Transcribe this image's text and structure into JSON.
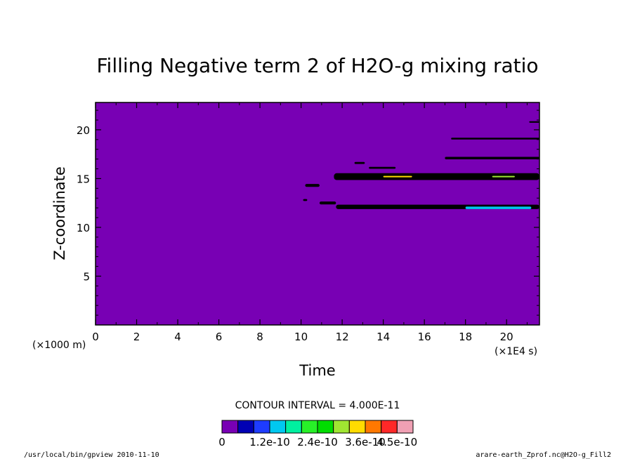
{
  "chart_data": {
    "type": "heatmap",
    "title": "Filling Negative term 2 of H2O-g mixing ratio",
    "xlabel": "Time",
    "ylabel": "Z-coordinate",
    "x_unit_label": "(×1E4 s)",
    "y_unit_label": "(×1000 m)",
    "xlim": [
      0,
      21.6
    ],
    "ylim": [
      0,
      22.8
    ],
    "x_ticks": [
      0,
      2,
      4,
      6,
      8,
      10,
      12,
      14,
      16,
      18,
      20
    ],
    "y_ticks": [
      5,
      10,
      15,
      20
    ],
    "x_tick_labels": [
      "0",
      "2",
      "4",
      "6",
      "8",
      "10",
      "12",
      "14",
      "16",
      "18",
      "20"
    ],
    "y_tick_labels": [
      "5",
      "10",
      "15",
      "20"
    ],
    "background_color": "#7800b4",
    "contour_interval_text": "CONTOUR INTERVAL = 4.000E-11",
    "colorbar": {
      "colors": [
        "#7800b4",
        "#0000b4",
        "#1e3cff",
        "#00c8f0",
        "#00f0a0",
        "#28f028",
        "#00dc00",
        "#a0e632",
        "#ffdc00",
        "#ff7800",
        "#ff2828",
        "#f0a0b4"
      ],
      "labels": [
        "0",
        "1.2e-10",
        "2.4e-10",
        "3.6e-10",
        "4.5e-10"
      ],
      "label_positions": [
        0,
        3,
        6,
        9,
        11
      ]
    },
    "features": [
      {
        "x0": 11.6,
        "x1": 21.6,
        "y": 15.2,
        "thickness": 0.7,
        "fill": "#000000"
      },
      {
        "x0": 11.7,
        "x1": 21.6,
        "y": 12.1,
        "thickness": 0.45,
        "fill": "#000000"
      },
      {
        "x0": 17.0,
        "x1": 21.6,
        "y": 17.1,
        "thickness": 0.25,
        "fill": "#000000"
      },
      {
        "x0": 17.3,
        "x1": 21.6,
        "y": 19.1,
        "thickness": 0.18,
        "fill": "#000000"
      },
      {
        "x0": 21.1,
        "x1": 21.6,
        "y": 20.8,
        "thickness": 0.15,
        "fill": "#000000"
      },
      {
        "x0": 10.9,
        "x1": 11.7,
        "y": 12.5,
        "thickness": 0.3,
        "fill": "#000000"
      },
      {
        "x0": 10.2,
        "x1": 10.9,
        "y": 14.3,
        "thickness": 0.3,
        "fill": "#000000"
      },
      {
        "x0": 12.6,
        "x1": 13.1,
        "y": 16.6,
        "thickness": 0.2,
        "fill": "#000000"
      },
      {
        "x0": 13.3,
        "x1": 14.6,
        "y": 16.1,
        "thickness": 0.2,
        "fill": "#000000"
      },
      {
        "x0": 10.1,
        "x1": 10.3,
        "y": 12.8,
        "thickness": 0.2,
        "fill": "#000000"
      },
      {
        "x0": 18.0,
        "x1": 21.2,
        "y": 12.0,
        "thickness": 0.25,
        "fill": "#00c8f0"
      },
      {
        "x0": 14.0,
        "x1": 15.4,
        "y": 15.2,
        "thickness": 0.1,
        "fill": "#ffdc00"
      },
      {
        "x0": 19.3,
        "x1": 20.4,
        "y": 15.2,
        "thickness": 0.1,
        "fill": "#a0e632"
      }
    ]
  },
  "footer": {
    "left": "/usr/local/bin/gpview  2010-11-10",
    "right": "arare-earth_Zprof.nc@H2O-g_Fill2"
  }
}
